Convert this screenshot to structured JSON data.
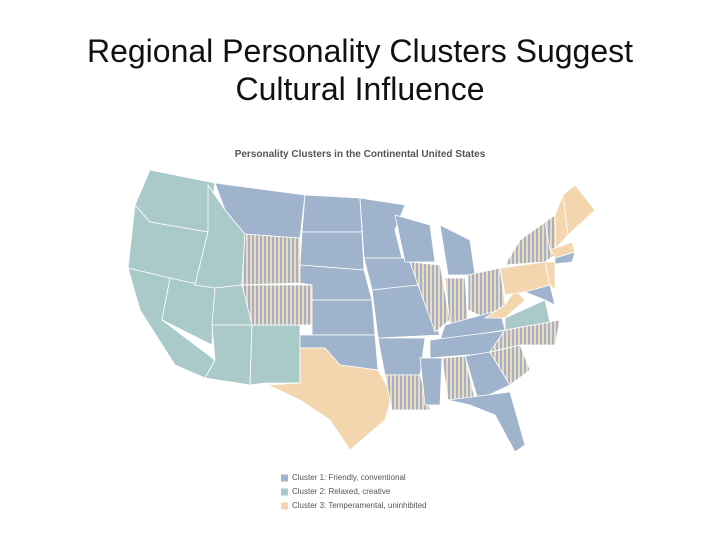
{
  "slide": {
    "title_lines": [
      "Regional Personality Clusters Suggest",
      "Cultural Influence"
    ]
  },
  "map": {
    "title": "Personality Clusters in the Continental United States",
    "legend": [
      {
        "label": "Cluster 1: Friendly, conventional",
        "color": "#9fb3cc"
      },
      {
        "label": "Cluster 2: Relaxed, creative",
        "color": "#aac9c9"
      },
      {
        "label": "Cluster 3: Temperamental, uninhibited",
        "color": "#f3d6ae"
      }
    ]
  }
}
